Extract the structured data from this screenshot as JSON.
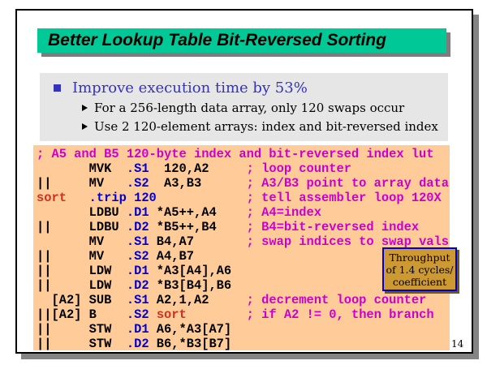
{
  "title": {
    "text": "Better Lookup Table Bit-Reversed Sorting",
    "bg": "#00C896"
  },
  "bullets": {
    "heading": "Improve execution time by 53%",
    "heading_color": "#3333BB",
    "items": [
      "For a 256-length data array, only 120 swaps occur",
      "Use 2 120-element arrays: index and bit-reversed index"
    ]
  },
  "icons": {
    "heading_bullet": "square-bullet",
    "sub_bullet": "triangle-right-bullet"
  },
  "code": {
    "bg": "#FFCC99",
    "colors": {
      "comment": "#CC00CC",
      "directive": "#0000CC",
      "label": "#CC3322",
      "plain": "#000000"
    },
    "lines": [
      [
        {
          "t": "; A5 and B5 120-byte index and bit-reversed index lut",
          "c": "comment"
        }
      ],
      [
        {
          "t": "       MVK  ",
          "c": "plain"
        },
        {
          "t": ".S1",
          "c": "directive"
        },
        {
          "t": "  120,A2     ",
          "c": "plain"
        },
        {
          "t": "; loop counter",
          "c": "comment"
        }
      ],
      [
        {
          "t": "||     MV   ",
          "c": "plain"
        },
        {
          "t": ".S2",
          "c": "directive"
        },
        {
          "t": "  A3,B3      ",
          "c": "plain"
        },
        {
          "t": "; A3/B3 point to array data",
          "c": "comment"
        }
      ],
      [
        {
          "t": "sort",
          "c": "label"
        },
        {
          "t": "   ",
          "c": "plain"
        },
        {
          "t": ".trip 120",
          "c": "directive"
        },
        {
          "t": "            ",
          "c": "plain"
        },
        {
          "t": "; tell assembler loop 120X",
          "c": "comment"
        }
      ],
      [
        {
          "t": "       LDBU ",
          "c": "plain"
        },
        {
          "t": ".D1",
          "c": "directive"
        },
        {
          "t": " *A5++,A4    ",
          "c": "plain"
        },
        {
          "t": "; A4=index",
          "c": "comment"
        }
      ],
      [
        {
          "t": "||     LDBU ",
          "c": "plain"
        },
        {
          "t": ".D2",
          "c": "directive"
        },
        {
          "t": " *B5++,B4    ",
          "c": "plain"
        },
        {
          "t": "; B4=bit-reversed index",
          "c": "comment"
        }
      ],
      [
        {
          "t": "       MV   ",
          "c": "plain"
        },
        {
          "t": ".S1",
          "c": "directive"
        },
        {
          "t": " B4,A7       ",
          "c": "plain"
        },
        {
          "t": "; swap indices to swap vals",
          "c": "comment"
        }
      ],
      [
        {
          "t": "||     MV   ",
          "c": "plain"
        },
        {
          "t": ".S2",
          "c": "directive"
        },
        {
          "t": " A4,B7",
          "c": "plain"
        }
      ],
      [
        {
          "t": "||     LDW  ",
          "c": "plain"
        },
        {
          "t": ".D1",
          "c": "directive"
        },
        {
          "t": " *A3[A4],A6",
          "c": "plain"
        }
      ],
      [
        {
          "t": "||     LDW  ",
          "c": "plain"
        },
        {
          "t": ".D2",
          "c": "directive"
        },
        {
          "t": " *B3[B4],B6",
          "c": "plain"
        }
      ],
      [
        {
          "t": "  [A2] SUB  ",
          "c": "plain"
        },
        {
          "t": ".S1",
          "c": "directive"
        },
        {
          "t": " A2,1,A2     ",
          "c": "plain"
        },
        {
          "t": "; decrement loop counter",
          "c": "comment"
        }
      ],
      [
        {
          "t": "||[A2] B    ",
          "c": "plain"
        },
        {
          "t": ".S2",
          "c": "directive"
        },
        {
          "t": " ",
          "c": "plain"
        },
        {
          "t": "sort",
          "c": "label"
        },
        {
          "t": "        ",
          "c": "plain"
        },
        {
          "t": "; if A2 != 0, then branch",
          "c": "comment"
        }
      ],
      [
        {
          "t": "||     STW  ",
          "c": "plain"
        },
        {
          "t": ".D1",
          "c": "directive"
        },
        {
          "t": " A6,*A3[A7]",
          "c": "plain"
        }
      ],
      [
        {
          "t": "||     STW  ",
          "c": "plain"
        },
        {
          "t": ".D2",
          "c": "directive"
        },
        {
          "t": " B6,*B3[B7]",
          "c": "plain"
        }
      ]
    ]
  },
  "callout": {
    "bg": "#CC9933",
    "border": "#0000CC",
    "lines": [
      "Throughput",
      "of 1.4 cycles/",
      "coefficient"
    ]
  },
  "page": {
    "number": "14"
  }
}
